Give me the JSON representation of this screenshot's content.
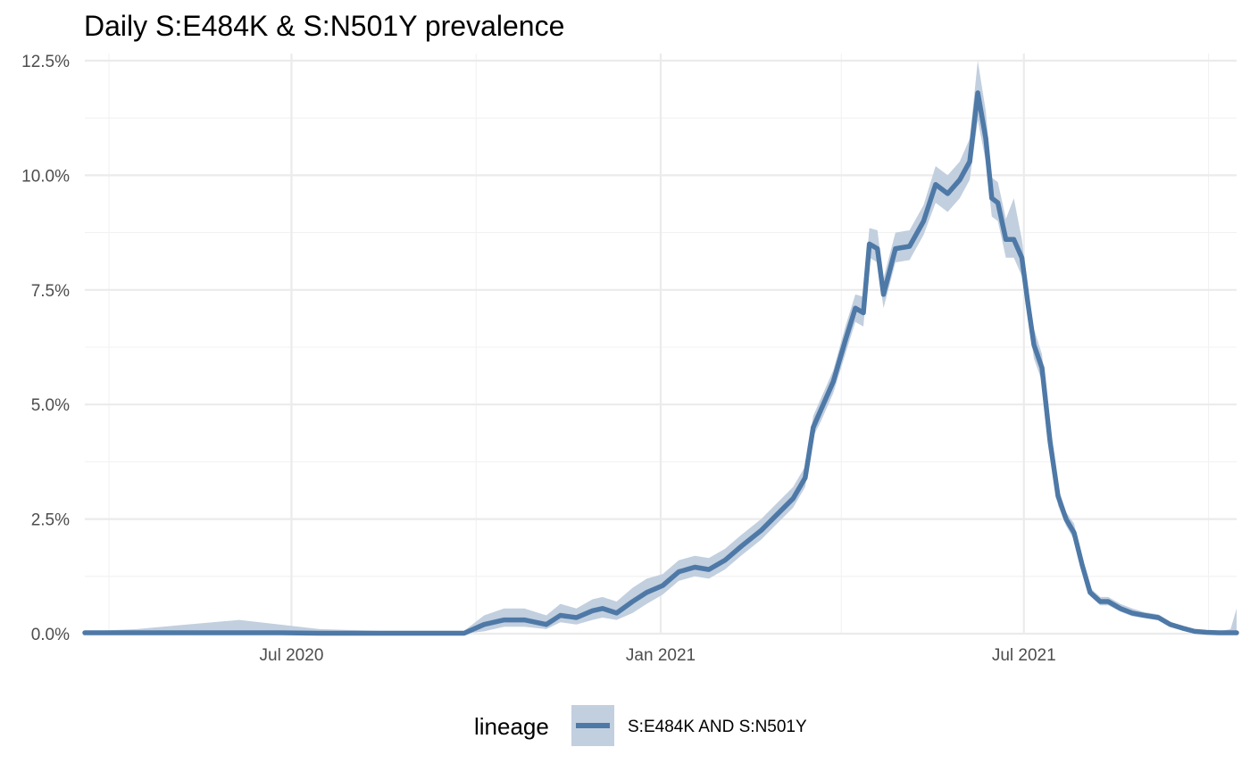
{
  "chart_data": {
    "type": "line",
    "title": "Daily S:E484K & S:N501Y prevalence",
    "xlabel": "",
    "ylabel": "",
    "x_ticks": [
      "Jul 2020",
      "Jan 2021",
      "Jul 2021"
    ],
    "y_ticks": [
      "0.0%",
      "2.5%",
      "5.0%",
      "7.5%",
      "10.0%",
      "12.5%"
    ],
    "ylim": [
      0,
      12.5
    ],
    "xlim": [
      "2020-03-20",
      "2021-10-15"
    ],
    "grid": true,
    "legend": {
      "title": "lineage",
      "position": "bottom"
    },
    "colors": {
      "line": "#4e79a7",
      "ribbon": "#c2cfdf"
    },
    "series": [
      {
        "name": "S:E484K AND S:N501Y",
        "x": [
          "2020-03-20",
          "2020-04-15",
          "2020-05-10",
          "2020-06-05",
          "2020-06-25",
          "2020-07-15",
          "2020-08-15",
          "2020-09-10",
          "2020-09-25",
          "2020-10-05",
          "2020-10-15",
          "2020-10-25",
          "2020-11-05",
          "2020-11-12",
          "2020-11-20",
          "2020-11-28",
          "2020-12-03",
          "2020-12-10",
          "2020-12-18",
          "2020-12-25",
          "2021-01-02",
          "2021-01-10",
          "2021-01-18",
          "2021-01-25",
          "2021-02-02",
          "2021-02-10",
          "2021-02-20",
          "2021-02-28",
          "2021-03-08",
          "2021-03-14",
          "2021-03-18",
          "2021-03-22",
          "2021-03-28",
          "2021-04-03",
          "2021-04-08",
          "2021-04-12",
          "2021-04-15",
          "2021-04-19",
          "2021-04-22",
          "2021-04-25",
          "2021-04-28",
          "2021-05-05",
          "2021-05-12",
          "2021-05-18",
          "2021-05-24",
          "2021-05-30",
          "2021-06-04",
          "2021-06-08",
          "2021-06-12",
          "2021-06-15",
          "2021-06-18",
          "2021-06-22",
          "2021-06-26",
          "2021-06-30",
          "2021-07-03",
          "2021-07-06",
          "2021-07-10",
          "2021-07-14",
          "2021-07-18",
          "2021-07-22",
          "2021-07-26",
          "2021-07-30",
          "2021-08-03",
          "2021-08-08",
          "2021-08-12",
          "2021-08-18",
          "2021-08-24",
          "2021-08-30",
          "2021-09-06",
          "2021-09-12",
          "2021-09-18",
          "2021-09-24",
          "2021-09-30",
          "2021-10-06",
          "2021-10-12",
          "2021-10-15"
        ],
        "values": [
          0.02,
          0.02,
          0.02,
          0.02,
          0.02,
          0.01,
          0.01,
          0.01,
          0.01,
          0.2,
          0.3,
          0.3,
          0.2,
          0.4,
          0.35,
          0.5,
          0.55,
          0.45,
          0.7,
          0.9,
          1.05,
          1.35,
          1.45,
          1.4,
          1.6,
          1.9,
          2.25,
          2.6,
          2.95,
          3.4,
          4.5,
          4.9,
          5.5,
          6.4,
          7.1,
          7.0,
          8.5,
          8.4,
          7.4,
          7.9,
          8.4,
          8.45,
          9.0,
          9.8,
          9.6,
          9.9,
          10.3,
          11.8,
          10.8,
          9.5,
          9.4,
          8.6,
          8.6,
          8.2,
          7.2,
          6.3,
          5.8,
          4.2,
          3.0,
          2.5,
          2.2,
          1.5,
          0.9,
          0.7,
          0.7,
          0.55,
          0.45,
          0.4,
          0.35,
          0.2,
          0.12,
          0.05,
          0.03,
          0.02,
          0.02,
          0.02
        ],
        "lower": [
          0.0,
          0.0,
          0.0,
          0.0,
          0.0,
          0.0,
          0.0,
          0.0,
          0.0,
          0.05,
          0.15,
          0.15,
          0.1,
          0.25,
          0.2,
          0.3,
          0.35,
          0.3,
          0.45,
          0.65,
          0.85,
          1.15,
          1.25,
          1.2,
          1.4,
          1.7,
          2.05,
          2.4,
          2.75,
          3.2,
          4.3,
          4.65,
          5.25,
          6.1,
          6.8,
          6.7,
          8.2,
          8.1,
          7.1,
          7.6,
          8.1,
          8.15,
          8.7,
          9.4,
          9.2,
          9.5,
          9.9,
          11.2,
          10.3,
          9.1,
          9.0,
          8.2,
          8.2,
          7.8,
          6.9,
          6.0,
          5.5,
          4.0,
          2.8,
          2.35,
          2.05,
          1.38,
          0.82,
          0.62,
          0.62,
          0.48,
          0.38,
          0.34,
          0.29,
          0.15,
          0.08,
          0.02,
          0.0,
          0.0,
          0.0,
          0.0
        ],
        "upper": [
          0.05,
          0.1,
          0.2,
          0.3,
          0.2,
          0.1,
          0.06,
          0.06,
          0.06,
          0.4,
          0.55,
          0.55,
          0.4,
          0.65,
          0.55,
          0.75,
          0.8,
          0.7,
          1.0,
          1.2,
          1.3,
          1.6,
          1.7,
          1.65,
          1.85,
          2.15,
          2.5,
          2.85,
          3.2,
          3.65,
          4.75,
          5.15,
          5.75,
          6.7,
          7.4,
          7.35,
          8.85,
          8.8,
          7.75,
          8.25,
          8.75,
          8.8,
          9.35,
          10.2,
          10.0,
          10.3,
          10.8,
          12.5,
          11.4,
          9.95,
          9.85,
          9.05,
          9.5,
          8.6,
          7.55,
          6.65,
          6.1,
          4.45,
          3.2,
          2.65,
          2.4,
          1.65,
          1.0,
          0.8,
          0.8,
          0.65,
          0.55,
          0.47,
          0.42,
          0.26,
          0.17,
          0.09,
          0.06,
          0.05,
          0.1,
          0.55
        ]
      }
    ]
  }
}
